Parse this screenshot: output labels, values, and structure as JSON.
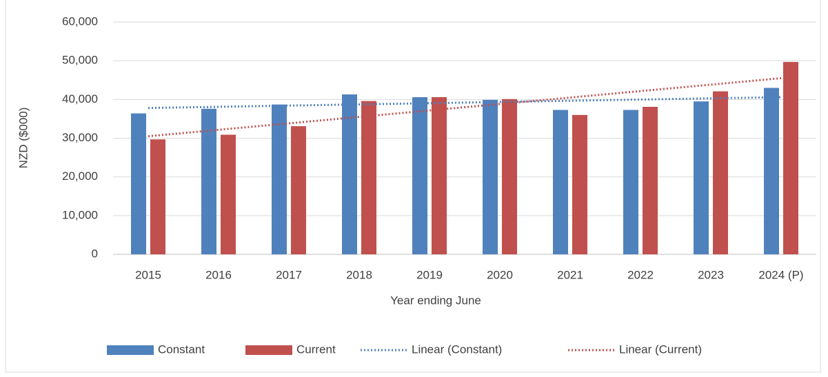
{
  "chart_data": {
    "type": "bar",
    "x_label": "Year ending June",
    "y_label": "NZD ($000)",
    "categories": [
      "2015",
      "2016",
      "2017",
      "2018",
      "2019",
      "2020",
      "2021",
      "2022",
      "2023",
      "2024 (P)"
    ],
    "series": [
      {
        "name": "Constant",
        "color": "#4f81bd",
        "values": [
          36400,
          37600,
          38700,
          41300,
          40600,
          39900,
          37300,
          37300,
          39500,
          43000
        ]
      },
      {
        "name": "Current",
        "color": "#c0504d",
        "values": [
          29700,
          30900,
          33100,
          39600,
          40600,
          40100,
          36000,
          38100,
          42100,
          49700
        ]
      },
      {
        "name": "Linear (Constant)",
        "color": "#4f81bd",
        "type": "line",
        "style": "dotted",
        "values": [
          37800,
          38110,
          38420,
          38730,
          39040,
          39360,
          39670,
          39980,
          40290,
          40600
        ]
      },
      {
        "name": "Linear (Current)",
        "color": "#c0504d",
        "type": "line",
        "style": "dotted",
        "values": [
          30500,
          32170,
          33830,
          35500,
          37170,
          38830,
          40500,
          42170,
          43830,
          45500
        ]
      }
    ],
    "ylim": [
      0,
      60000
    ],
    "yticks": [
      {
        "value": 0,
        "label": "0"
      },
      {
        "value": 10000,
        "label": "10,000"
      },
      {
        "value": 20000,
        "label": "20,000"
      },
      {
        "value": 30000,
        "label": "30,000"
      },
      {
        "value": 40000,
        "label": "40,000"
      },
      {
        "value": 50000,
        "label": "50,000"
      },
      {
        "value": 60000,
        "label": "60,000"
      }
    ],
    "grid": true,
    "legend": "bottom"
  }
}
